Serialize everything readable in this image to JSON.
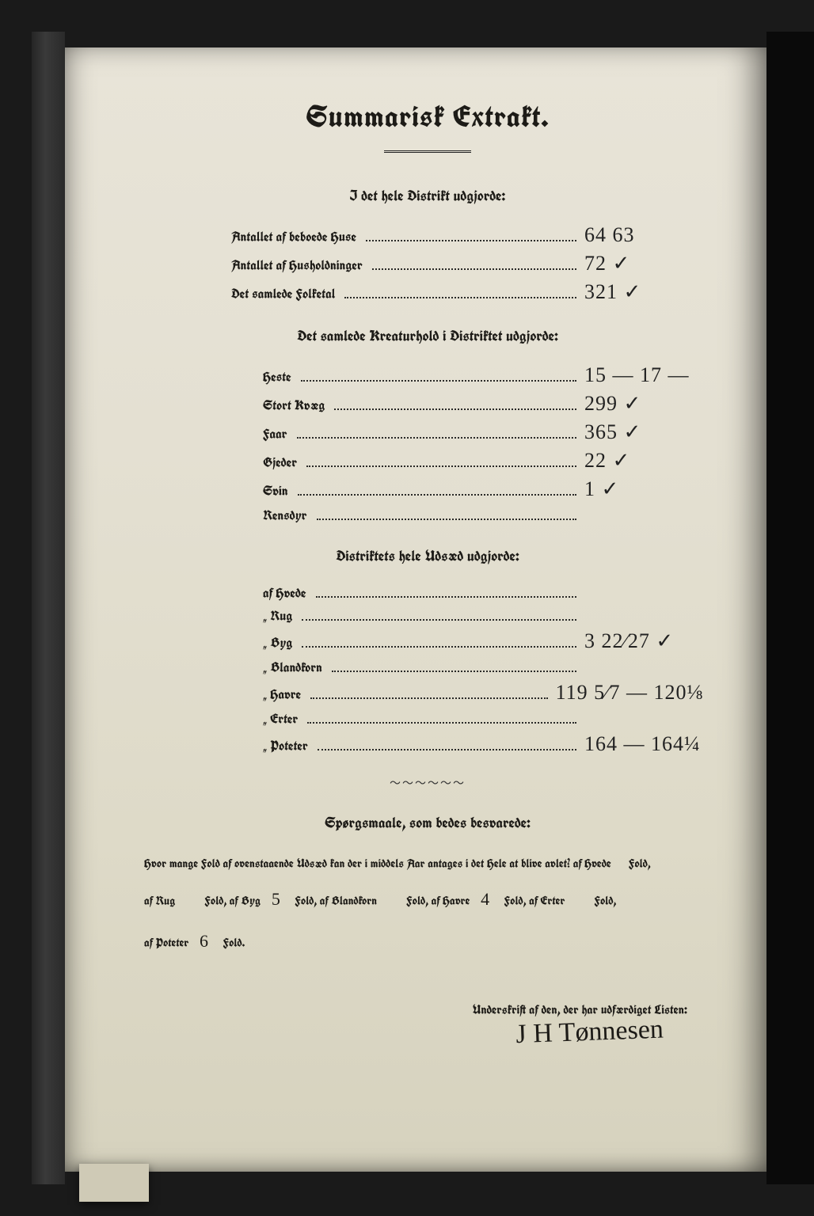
{
  "title": "Summarisk Extrakt.",
  "section1": {
    "heading": "I det hele Distrikt udgjorde:",
    "rows": [
      {
        "label": "Antallet af beboede Huse",
        "value": "64   63"
      },
      {
        "label": "Antallet af Husholdninger",
        "value": "72 ✓"
      },
      {
        "label": "Det samlede Folketal",
        "value": "321 ✓"
      }
    ]
  },
  "section2": {
    "heading": "Det samlede Kreaturhold i Distriktet udgjorde:",
    "rows": [
      {
        "label": "Heste",
        "value": "15   — 17 —"
      },
      {
        "label": "Stort Kvæg",
        "value": "299 ✓"
      },
      {
        "label": "Faar",
        "value": "365 ✓"
      },
      {
        "label": "Gjeder",
        "value": "22 ✓"
      },
      {
        "label": "Svin",
        "value": "1 ✓"
      },
      {
        "label": "Rensdyr",
        "value": ""
      }
    ]
  },
  "section3": {
    "heading": "Distriktets hele Udsæd udgjorde:",
    "rows": [
      {
        "label": "af Hvede",
        "value": ""
      },
      {
        "label": "„  Rug",
        "value": ""
      },
      {
        "label": "„  Byg",
        "value": "3 22⁄27 ✓"
      },
      {
        "label": "„  Blandkorn",
        "value": ""
      },
      {
        "label": "„  Havre",
        "value": "119 5⁄7  — 120⅛"
      },
      {
        "label": "„  Erter",
        "value": ""
      },
      {
        "label": "„  Poteter",
        "value": "164  — 164¼"
      }
    ]
  },
  "section4": {
    "heading": "Spørgsmaale, som bedes besvarede:",
    "text_pre": "Hvor mange Fold af ovenstaaende Udsæd kan der i middels Aar antages i det Hele at blive avlet?   af Hvede",
    "fold": "Fold,",
    "rug": "af Rug",
    "rug_val": "",
    "byg": "Fold, af Byg",
    "byg_val": "5",
    "bland": "Fold, af Blandkorn",
    "bland_val": "",
    "havre": "Fold, af Havre",
    "havre_val": "4",
    "erter": "Fold, af Erter",
    "erter_val": "",
    "poteter": "af Poteter",
    "poteter_val": "6",
    "fold2": "Fold."
  },
  "footer": {
    "label": "Underskrift af den, der har udfærdiget Listen:",
    "signature": "J H Tønnesen"
  }
}
